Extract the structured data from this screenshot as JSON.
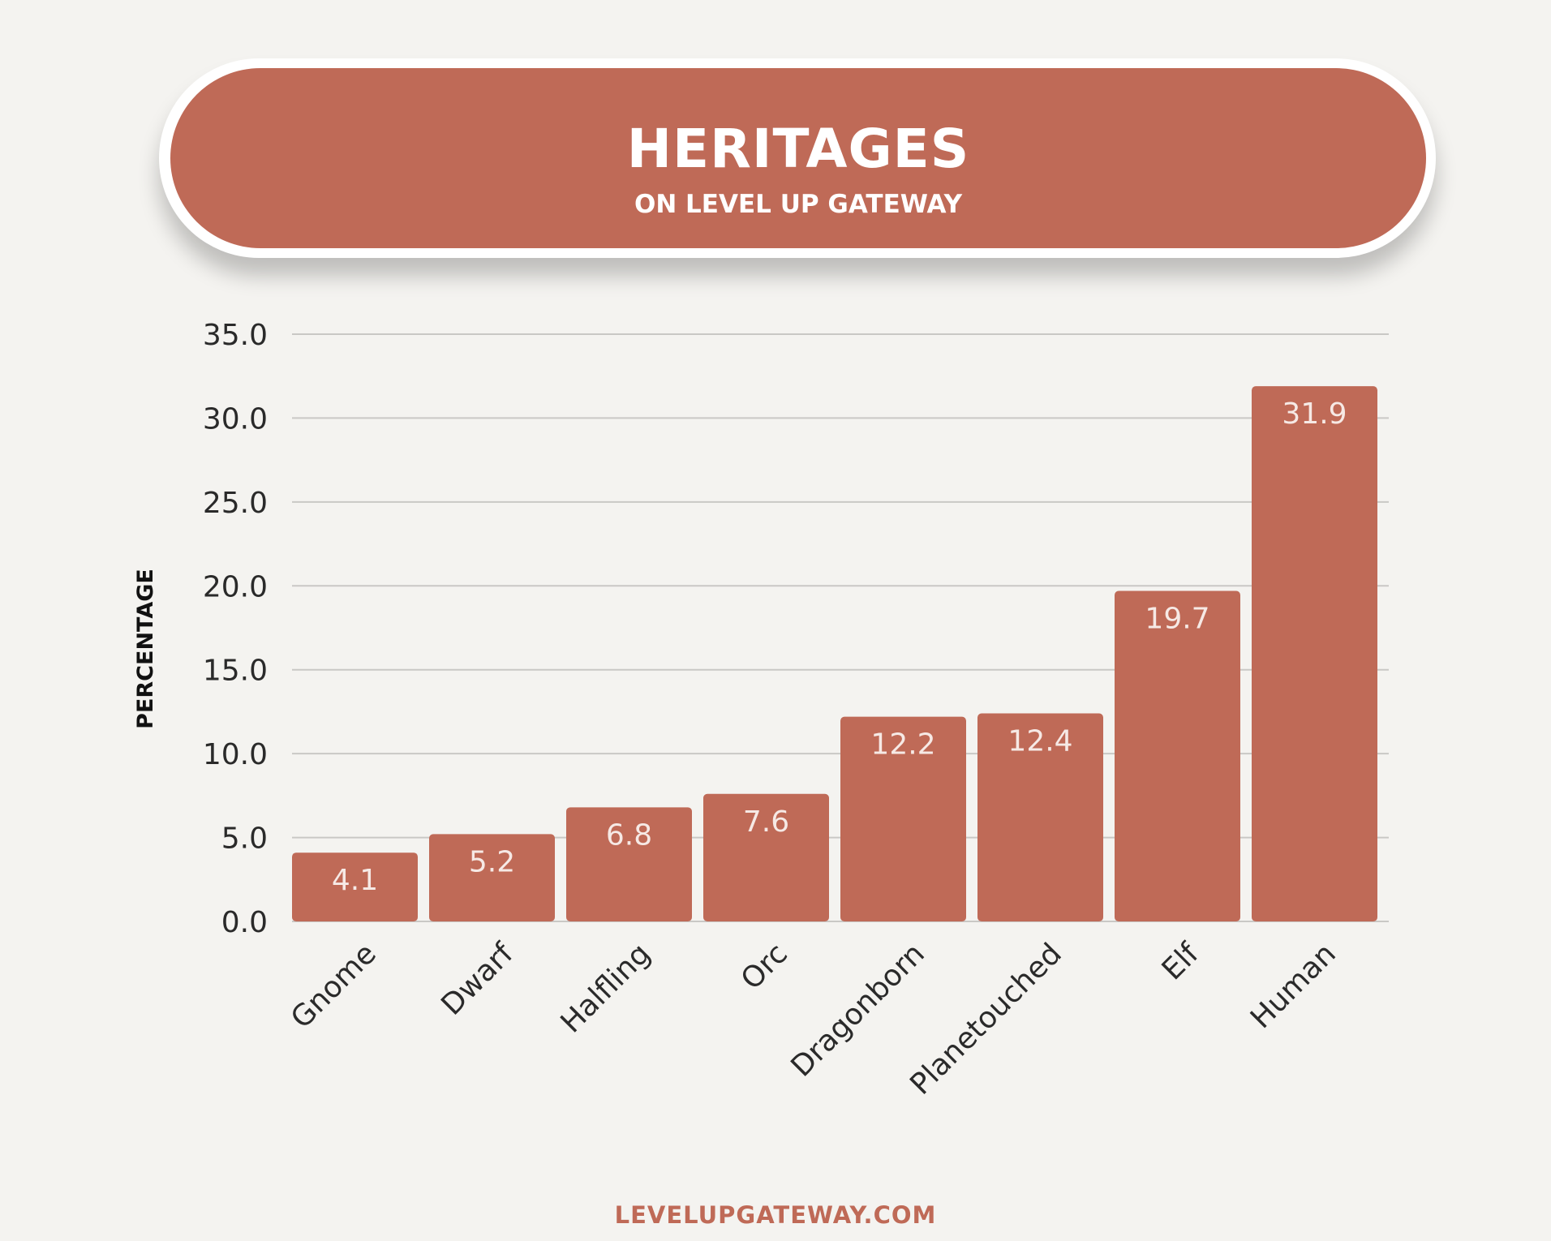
{
  "header": {
    "title": "HERITAGES",
    "subtitle": "ON LEVEL UP GATEWAY"
  },
  "footer": {
    "site": "LEVELUPGATEWAY.COM"
  },
  "colors": {
    "bar": "#bf6a57",
    "grid": "#c9c8c5",
    "background": "#f4f3f0",
    "bar_label": "#f6e9e5",
    "axis_text": "#2a2a2a"
  },
  "chart_data": {
    "type": "bar",
    "title": "HERITAGES",
    "subtitle": "ON LEVEL UP GATEWAY",
    "xlabel": "",
    "ylabel": "PERCENTAGE",
    "categories": [
      "Gnome",
      "Dwarf",
      "Halfling",
      "Orc",
      "Dragonborn",
      "Planetouched",
      "Elf",
      "Human"
    ],
    "values": [
      4.1,
      5.2,
      6.8,
      7.6,
      12.2,
      12.4,
      19.7,
      31.9
    ],
    "value_labels": [
      "4.1",
      "5.2",
      "6.8",
      "7.6",
      "12.2",
      "12.4",
      "19.7",
      "31.9"
    ],
    "yticks": [
      "0.0",
      "5.0",
      "10.0",
      "15.0",
      "20.0",
      "25.0",
      "30.0",
      "35.0"
    ],
    "ylim": [
      0,
      35
    ],
    "grid": true,
    "legend": "none"
  }
}
